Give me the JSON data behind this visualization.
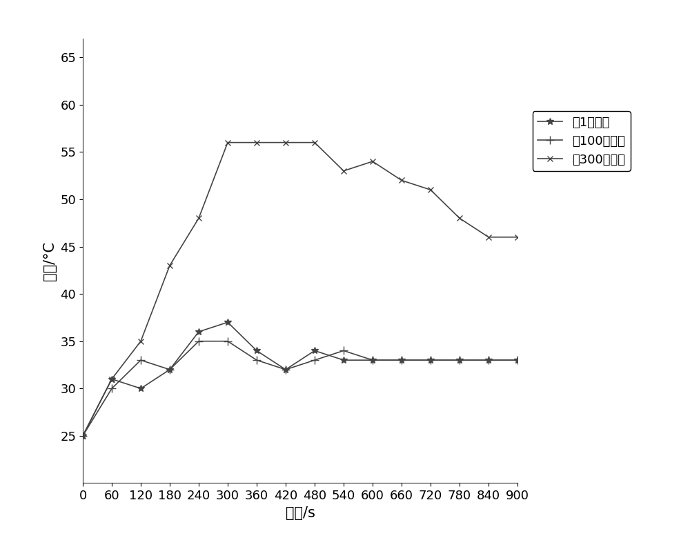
{
  "x": [
    0,
    60,
    120,
    180,
    240,
    300,
    360,
    420,
    480,
    540,
    600,
    660,
    720,
    780,
    840,
    900
  ],
  "series1_y": [
    25,
    31,
    30,
    32,
    36,
    37,
    34,
    32,
    34,
    33,
    33,
    33,
    33,
    33,
    33,
    33
  ],
  "series2_y": [
    25,
    30,
    33,
    32,
    35,
    35,
    33,
    32,
    33,
    34,
    33,
    33,
    33,
    33,
    33,
    33
  ],
  "series3_y": [
    25,
    31,
    35,
    43,
    48,
    56,
    56,
    56,
    56,
    53,
    54,
    52,
    51,
    48,
    46,
    46
  ],
  "series1_label": "第1次通电",
  "series2_label": "第100次通电",
  "series3_label": "第300次通电",
  "xlabel": "时间/s",
  "ylabel": "温度/°C",
  "xlim": [
    0,
    900
  ],
  "ylim": [
    20,
    67
  ],
  "yticks": [
    25,
    30,
    35,
    40,
    45,
    50,
    55,
    60,
    65
  ],
  "xticks": [
    0,
    60,
    120,
    180,
    240,
    300,
    360,
    420,
    480,
    540,
    600,
    660,
    720,
    780,
    840,
    900
  ],
  "line_color": "#444444",
  "bg_color": "#ffffff",
  "linewidth": 1.2,
  "markersize": 5,
  "label_fontsize": 15,
  "tick_fontsize": 13,
  "legend_fontsize": 13
}
